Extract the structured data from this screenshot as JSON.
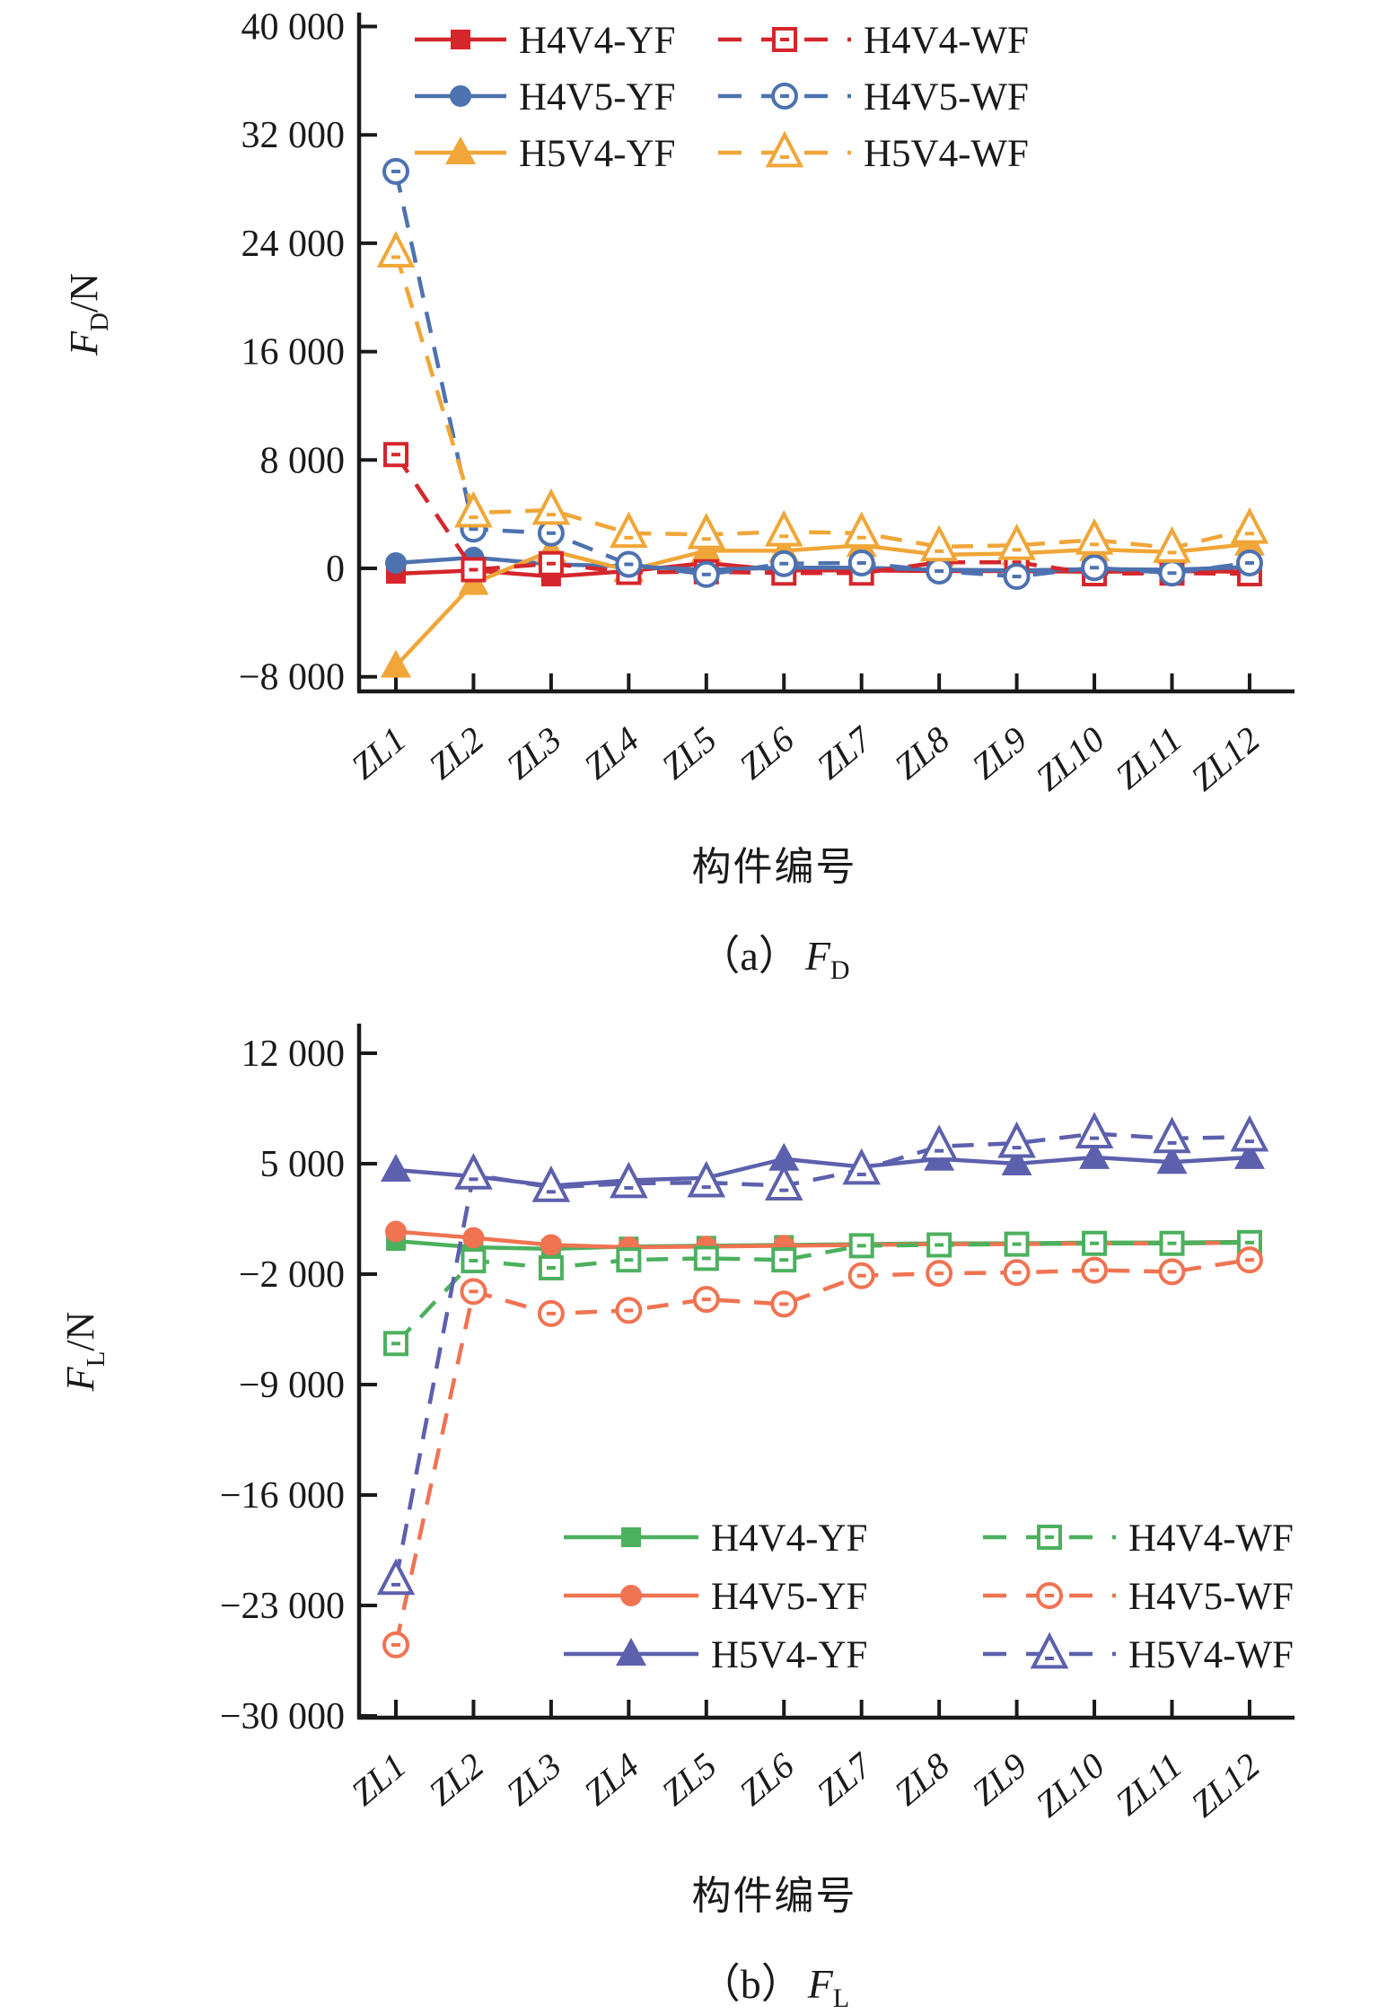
{
  "page": {
    "background": "#ffffff"
  },
  "chart_data": [
    {
      "id": "fd",
      "type": "line",
      "title": "(a) F_D",
      "caption": {
        "prefix": "（a）",
        "sym": "F",
        "sub": "D"
      },
      "xlabel": "构件编号",
      "ylabel": {
        "sym": "F",
        "sub": "D",
        "unit": "/N"
      },
      "ylim": [
        -8000,
        40000
      ],
      "grid": false,
      "legend_position": "top-right-inside",
      "yticks": [
        {
          "label": "40 000",
          "value": 40000
        },
        {
          "label": "32 000",
          "value": 32000
        },
        {
          "label": "24 000",
          "value": 24000
        },
        {
          "label": "16 000",
          "value": 16000
        },
        {
          "label": "8 000",
          "value": 8000
        },
        {
          "label": "0",
          "value": 0
        },
        {
          "label": "−8 000",
          "value": -8000
        }
      ],
      "categories": [
        "ZL1",
        "ZL2",
        "ZL3",
        "ZL4",
        "ZL5",
        "ZL6",
        "ZL7",
        "ZL8",
        "ZL9",
        "ZL10",
        "ZL11",
        "ZL12"
      ],
      "series": [
        {
          "name": "H4V4-YF",
          "color": "#d5262c",
          "line": "solid",
          "marker": "square",
          "fill": "filled",
          "values": [
            -400,
            -150,
            -600,
            -200,
            400,
            -150,
            -150,
            -200,
            -200,
            -250,
            -200,
            -250
          ]
        },
        {
          "name": "H4V5-YF",
          "color": "#4d72b0",
          "line": "solid",
          "marker": "circle",
          "fill": "filled",
          "values": [
            400,
            800,
            300,
            150,
            -100,
            50,
            50,
            -100,
            -150,
            -50,
            -100,
            100
          ]
        },
        {
          "name": "H5V4-YF",
          "color": "#f0a638",
          "line": "solid",
          "marker": "triangle",
          "fill": "filled",
          "values": [
            -7200,
            -1100,
            1300,
            -150,
            1300,
            1300,
            1700,
            1000,
            1100,
            1400,
            1200,
            1800
          ]
        },
        {
          "name": "H4V4-WF",
          "color": "#d5262c",
          "line": "dashed",
          "marker": "square",
          "fill": "open",
          "values": [
            8400,
            -100,
            350,
            -300,
            -250,
            -350,
            -350,
            450,
            450,
            -400,
            -350,
            -400
          ]
        },
        {
          "name": "H4V5-WF",
          "color": "#4d72b0",
          "line": "dashed",
          "marker": "circle",
          "fill": "open",
          "values": [
            29300,
            2900,
            2600,
            300,
            -450,
            350,
            400,
            -200,
            -600,
            50,
            -350,
            400
          ]
        },
        {
          "name": "H5V4-WF",
          "color": "#f0a638",
          "line": "dashed",
          "marker": "triangle",
          "fill": "open",
          "values": [
            23300,
            4100,
            4300,
            2600,
            2500,
            2700,
            2600,
            1600,
            1700,
            2100,
            1500,
            2900
          ]
        }
      ]
    },
    {
      "id": "fl",
      "type": "line",
      "title": "(b) F_L",
      "caption": {
        "prefix": "（b）",
        "sym": "F",
        "sub": "L"
      },
      "xlabel": "构件编号",
      "ylabel": {
        "sym": "F",
        "sub": "L",
        "unit": "/N"
      },
      "ylim": [
        -30000,
        12000
      ],
      "grid": false,
      "legend_position": "bottom-right-inside",
      "yticks": [
        {
          "label": "12 000",
          "value": 12000
        },
        {
          "label": "5 000",
          "value": 5000
        },
        {
          "label": "−2 000",
          "value": -2000
        },
        {
          "label": "−9 000",
          "value": -9000
        },
        {
          "label": "−16 000",
          "value": -16000
        },
        {
          "label": "−23 000",
          "value": -23000
        },
        {
          "label": "−30 000",
          "value": -30000
        }
      ],
      "categories": [
        "ZL1",
        "ZL2",
        "ZL3",
        "ZL4",
        "ZL5",
        "ZL6",
        "ZL7",
        "ZL8",
        "ZL9",
        "ZL10",
        "ZL11",
        "ZL12"
      ],
      "series": [
        {
          "name": "H4V4-YF",
          "color": "#4cb05e",
          "line": "solid",
          "marker": "square",
          "fill": "filled",
          "values": [
            100,
            -300,
            -400,
            -250,
            -200,
            -150,
            -100,
            -50,
            -50,
            0,
            0,
            50
          ]
        },
        {
          "name": "H4V5-YF",
          "color": "#f07352",
          "line": "solid",
          "marker": "circle",
          "fill": "filled",
          "values": [
            700,
            300,
            -150,
            -300,
            -250,
            -200,
            -150,
            -100,
            -100,
            -50,
            -50,
            0
          ]
        },
        {
          "name": "H5V4-YF",
          "color": "#5d60ac",
          "line": "solid",
          "marker": "triangle",
          "fill": "filled",
          "values": [
            4600,
            4200,
            3600,
            3950,
            4100,
            5300,
            4800,
            5300,
            5000,
            5400,
            5100,
            5400
          ]
        },
        {
          "name": "H4V4-WF",
          "color": "#4cb05e",
          "line": "dashed",
          "marker": "square",
          "fill": "open",
          "values": [
            -6400,
            -1150,
            -1600,
            -1100,
            -1000,
            -1100,
            -200,
            -150,
            -100,
            -50,
            -50,
            0
          ]
        },
        {
          "name": "H4V5-WF",
          "color": "#f07352",
          "line": "dashed",
          "marker": "circle",
          "fill": "open",
          "values": [
            -25500,
            -3100,
            -4500,
            -4300,
            -3600,
            -3900,
            -2100,
            -1950,
            -1900,
            -1750,
            -1850,
            -1100
          ]
        },
        {
          "name": "H5V4-WF",
          "color": "#5d60ac",
          "line": "dashed",
          "marker": "triangle",
          "fill": "open",
          "values": [
            -21400,
            4300,
            3500,
            3750,
            3800,
            3600,
            4600,
            6100,
            6300,
            6900,
            6600,
            6700
          ]
        }
      ]
    }
  ]
}
